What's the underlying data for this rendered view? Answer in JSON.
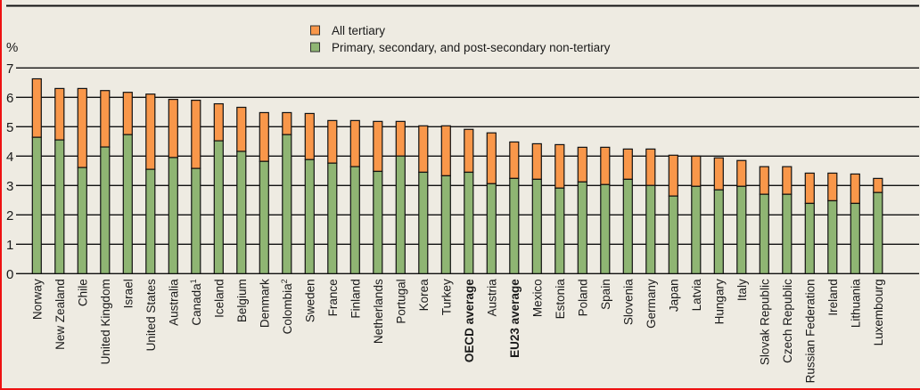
{
  "chart_data": {
    "type": "bar",
    "stacked": true,
    "title": "",
    "xlabel": "",
    "ylabel": "%",
    "ylim": [
      0,
      7
    ],
    "yticks": [
      "0",
      "1",
      "2",
      "3",
      "4",
      "5",
      "6",
      "7"
    ],
    "grid": true,
    "legend_position": "top-center",
    "categories": [
      {
        "label": "Norway"
      },
      {
        "label": "New Zealand"
      },
      {
        "label": "Chile"
      },
      {
        "label": "United Kingdom"
      },
      {
        "label": "Israel"
      },
      {
        "label": "United States"
      },
      {
        "label": "Australia"
      },
      {
        "label": "Canada",
        "sup": "1"
      },
      {
        "label": "Iceland"
      },
      {
        "label": "Belgium"
      },
      {
        "label": "Denmark"
      },
      {
        "label": "Colombia",
        "sup": "2"
      },
      {
        "label": "Sweden"
      },
      {
        "label": "France"
      },
      {
        "label": "Finland"
      },
      {
        "label": "Netherlands"
      },
      {
        "label": "Portugal"
      },
      {
        "label": "Korea"
      },
      {
        "label": "Turkey"
      },
      {
        "label": "OECD average",
        "bold": true
      },
      {
        "label": "Austria"
      },
      {
        "label": "EU23 average",
        "bold": true
      },
      {
        "label": "Mexico"
      },
      {
        "label": "Estonia"
      },
      {
        "label": "Poland"
      },
      {
        "label": "Spain"
      },
      {
        "label": "Slovenia"
      },
      {
        "label": "Germany"
      },
      {
        "label": "Japan"
      },
      {
        "label": "Latvia"
      },
      {
        "label": "Hungary"
      },
      {
        "label": "Italy"
      },
      {
        "label": "Slovak Republic"
      },
      {
        "label": "Czech Republic"
      },
      {
        "label": "Russian Federation"
      },
      {
        "label": "Ireland"
      },
      {
        "label": "Lithuania"
      },
      {
        "label": "Luxembourg"
      }
    ],
    "series": [
      {
        "name": "Primary, secondary, and post-secondary non-tertiary",
        "color": "#8fb573",
        "values": [
          4.64,
          4.55,
          3.61,
          4.31,
          4.73,
          3.55,
          3.95,
          3.58,
          4.52,
          4.16,
          3.82,
          4.73,
          3.88,
          3.76,
          3.64,
          3.48,
          4.0,
          3.45,
          3.33,
          3.45,
          3.06,
          3.24,
          3.21,
          2.91,
          3.12,
          3.03,
          3.21,
          3.0,
          2.64,
          2.97,
          2.85,
          2.97,
          2.7,
          2.7,
          2.39,
          2.48,
          2.39,
          2.76
        ]
      },
      {
        "name": "All tertiary",
        "color": "#f9974a",
        "totals": [
          6.63,
          6.3,
          6.3,
          6.23,
          6.17,
          6.11,
          5.93,
          5.9,
          5.78,
          5.66,
          5.48,
          5.48,
          5.45,
          5.21,
          5.21,
          5.18,
          5.18,
          5.03,
          5.03,
          4.91,
          4.79,
          4.48,
          4.42,
          4.39,
          4.3,
          4.3,
          4.24,
          4.24,
          4.03,
          4.0,
          3.94,
          3.85,
          3.64,
          3.64,
          3.42,
          3.42,
          3.39,
          3.24
        ],
        "values": [
          1.99,
          1.75,
          2.69,
          1.92,
          1.44,
          2.56,
          1.98,
          2.32,
          1.26,
          1.5,
          1.66,
          0.75,
          1.57,
          1.45,
          1.57,
          1.7,
          1.18,
          1.58,
          1.7,
          1.46,
          1.73,
          1.24,
          1.21,
          1.48,
          1.18,
          1.27,
          1.03,
          1.24,
          1.39,
          1.03,
          1.09,
          0.88,
          0.94,
          0.94,
          1.03,
          0.94,
          1.0,
          0.48
        ]
      }
    ],
    "legend": [
      {
        "label": "All tertiary",
        "color": "#f9974a"
      },
      {
        "label": "Primary, secondary, and post-secondary non-tertiary",
        "color": "#8fb573"
      }
    ]
  }
}
